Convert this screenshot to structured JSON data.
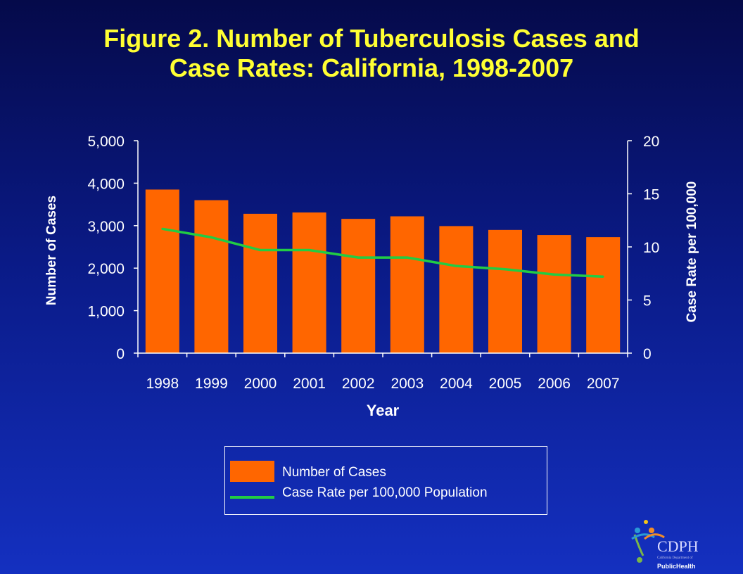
{
  "title_line1": "Figure 2. Number of Tuberculosis Cases and",
  "title_line2": "Case Rates: California, 1998-2007",
  "colors": {
    "bar": "#ff6600",
    "line": "#22cc44",
    "text": "#ffffff",
    "title": "#ffff33"
  },
  "chart_data": {
    "type": "bar",
    "categories": [
      "1998",
      "1999",
      "2000",
      "2001",
      "2002",
      "2003",
      "2004",
      "2005",
      "2006",
      "2007"
    ],
    "series": [
      {
        "name": "Number of Cases",
        "type": "bar",
        "axis": "left",
        "values": [
          3850,
          3600,
          3280,
          3310,
          3160,
          3220,
          2990,
          2900,
          2780,
          2730
        ]
      },
      {
        "name": "Case Rate per 100,000 Population",
        "type": "line",
        "axis": "right",
        "values": [
          11.7,
          10.9,
          9.7,
          9.7,
          9.0,
          9.0,
          8.2,
          7.9,
          7.4,
          7.2
        ]
      }
    ],
    "xlabel": "Year",
    "ylabel": "Number of Cases",
    "y2label": "Case Rate  per 100,000",
    "ylim": [
      0,
      5000
    ],
    "y2lim": [
      0,
      20
    ],
    "yticks": [
      "0",
      "1,000",
      "2,000",
      "3,000",
      "4,000",
      "5,000"
    ],
    "y2ticks": [
      "0",
      "5",
      "10",
      "15",
      "20"
    ],
    "legend_position": "bottom-center",
    "grid": false
  },
  "legend": {
    "items": [
      "Number of Cases",
      "Case Rate per 100,000 Population"
    ]
  },
  "logo": {
    "name": "CDPH",
    "line1": "California Department of",
    "line2": "PublicHealth"
  }
}
